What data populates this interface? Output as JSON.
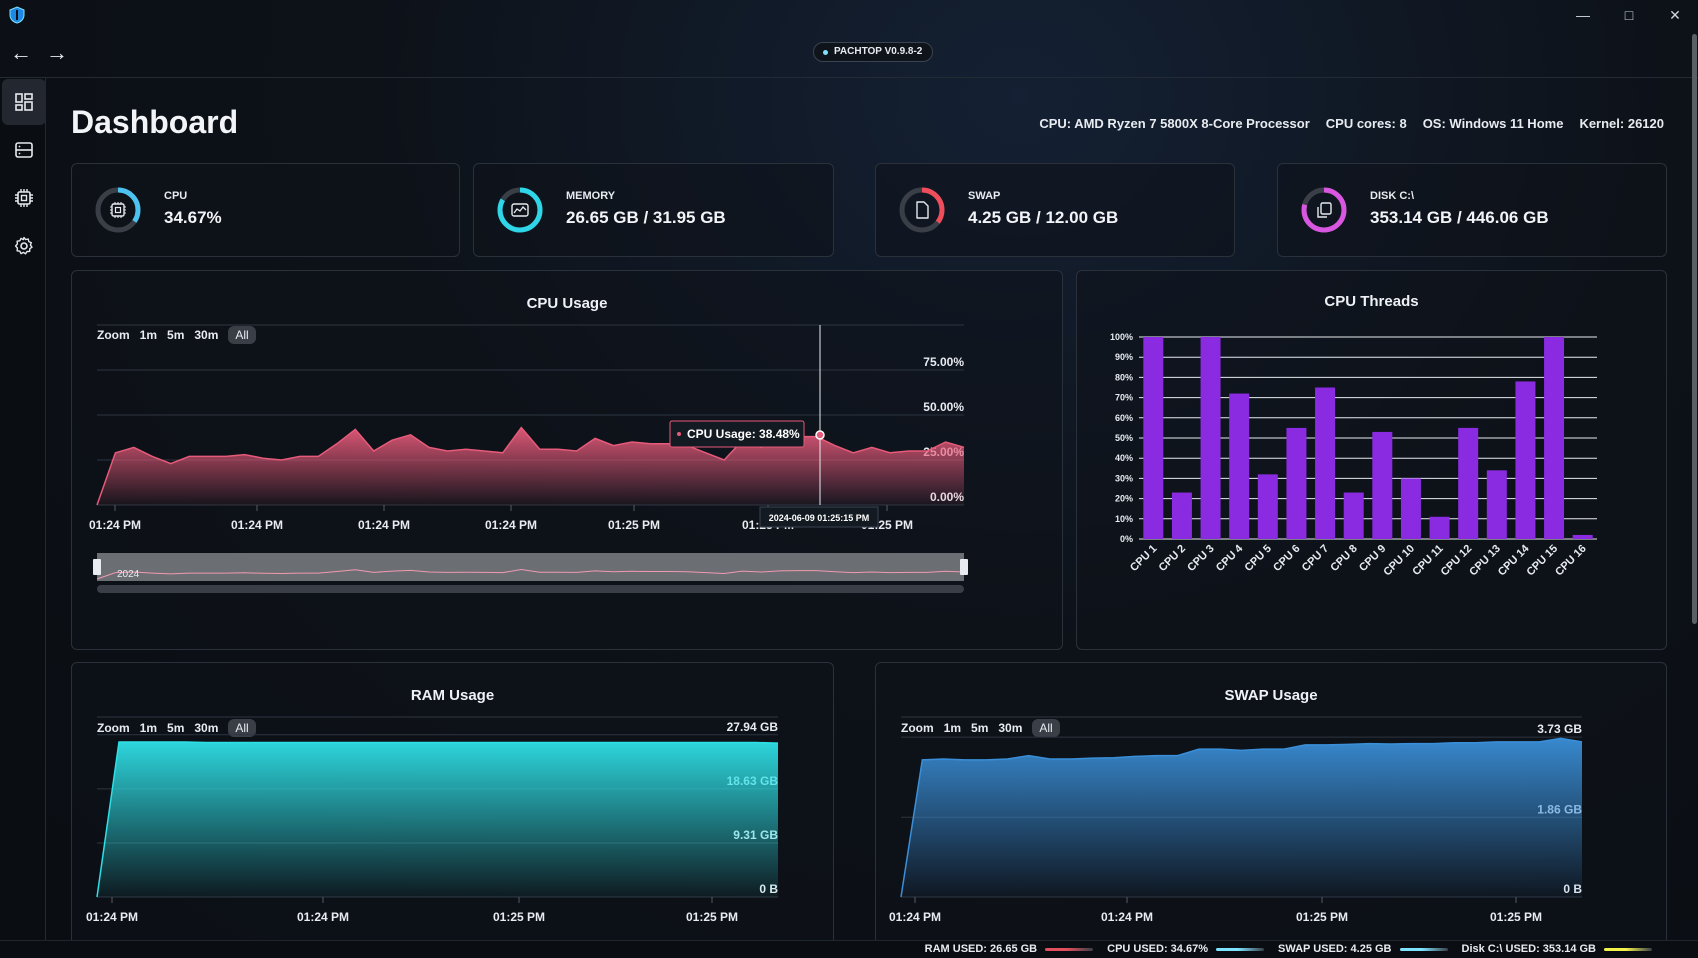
{
  "app": {
    "version": "PACHTOP V0.9.8-2",
    "title": "Dashboard"
  },
  "sysinfo": {
    "cpu": "CPU: AMD Ryzen 7 5800X 8-Core Processor",
    "cores": "CPU cores: 8",
    "os": "OS: Windows 11 Home",
    "kernel": "Kernel: 26120"
  },
  "sidebar": {
    "items": [
      {
        "icon": "dashboard-icon",
        "active": true
      },
      {
        "icon": "server-icon",
        "active": false
      },
      {
        "icon": "chip-icon",
        "active": false
      },
      {
        "icon": "gear-icon",
        "active": false
      }
    ]
  },
  "stats": [
    {
      "label": "CPU",
      "value": "34.67%",
      "fraction": 0.3467,
      "color": "#4cc2f0",
      "icon": "chip-icon"
    },
    {
      "label": "MEMORY",
      "value": "26.65 GB / 31.95 GB",
      "fraction": 0.834,
      "color": "#2ed6e8",
      "icon": "memory-icon"
    },
    {
      "label": "SWAP",
      "value": "4.25 GB / 12.00 GB",
      "fraction": 0.354,
      "color": "#ef4d5b",
      "icon": "file-icon"
    },
    {
      "label": "DISK C:\\",
      "value": "353.14 GB / 446.06 GB",
      "fraction": 0.792,
      "color": "#d957e0",
      "icon": "copy-icon"
    }
  ],
  "zoom": {
    "label": "Zoom",
    "options": [
      "1m",
      "5m",
      "30m",
      "All"
    ],
    "selected": "All"
  },
  "cpu_usage": {
    "title": "CPU Usage",
    "tooltip": "CPU Usage: 38.48%",
    "crosshair_time": "2024-06-09 01:25:15 PM",
    "navigator_label": "2024",
    "color": "#e65a7a"
  },
  "cpu_threads": {
    "title": "CPU Threads",
    "color": "#8a2be2"
  },
  "ram_usage": {
    "title": "RAM Usage",
    "color": "#2ee0e6"
  },
  "swap_usage": {
    "title": "SWAP Usage",
    "color": "#3a8fd8"
  },
  "statusbar": {
    "items": [
      {
        "label": "RAM USED: 26.65 GB",
        "color": "#e24f5d"
      },
      {
        "label": "CPU USED: 34.67%",
        "color": "#7de3ff"
      },
      {
        "label": "SWAP USED: 4.25 GB",
        "color": "#7de3ff"
      },
      {
        "label": "Disk C:\\ USED: 353.14 GB",
        "color": "#f3f24a"
      }
    ]
  },
  "chart_data": [
    {
      "type": "area",
      "title": "CPU Usage",
      "series": [
        {
          "name": "CPU Usage",
          "values": [
            0,
            29,
            32,
            27,
            23,
            27,
            27,
            27,
            28,
            26,
            25,
            27,
            27,
            34,
            42,
            30,
            36,
            39,
            32,
            30,
            31,
            30,
            29,
            43,
            31,
            31,
            30,
            37,
            33,
            35,
            34,
            34,
            33,
            29,
            25,
            36,
            32,
            37,
            38,
            38,
            33,
            29,
            32,
            29,
            30,
            30,
            35,
            32
          ]
        }
      ],
      "x_tick_labels": [
        "01:24 PM",
        "01:24 PM",
        "01:24 PM",
        "01:24 PM",
        "01:25 PM",
        "01:25 PM",
        "01:25 PM"
      ],
      "y_tick_labels": [
        "0.00%",
        "25.00%",
        "50.00%",
        "75.00%"
      ],
      "ylim": [
        0,
        100
      ]
    },
    {
      "type": "bar",
      "title": "CPU Threads",
      "categories": [
        "CPU 1",
        "CPU 2",
        "CPU 3",
        "CPU 4",
        "CPU 5",
        "CPU 6",
        "CPU 7",
        "CPU 8",
        "CPU 9",
        "CPU 10",
        "CPU 11",
        "CPU 12",
        "CPU 13",
        "CPU 14",
        "CPU 15",
        "CPU 16"
      ],
      "values": [
        100,
        23,
        100,
        72,
        32,
        55,
        75,
        23,
        53,
        30,
        11,
        55,
        34,
        78,
        100,
        2
      ],
      "y_tick_labels": [
        "0%",
        "10%",
        "20%",
        "30%",
        "40%",
        "50%",
        "60%",
        "70%",
        "80%",
        "90%",
        "100%"
      ],
      "ylim": [
        0,
        100
      ],
      "grid": true
    },
    {
      "type": "area",
      "title": "RAM Usage",
      "series": [
        {
          "name": "RAM",
          "values": [
            0,
            26.7,
            26.7,
            26.7,
            26.7,
            26.6,
            26.6,
            26.6,
            26.6,
            26.6,
            26.6,
            26.6,
            26.6,
            26.6,
            26.6,
            26.6,
            26.6,
            26.6,
            26.6,
            26.6,
            26.6,
            26.6,
            26.6,
            26.6,
            26.6,
            26.6,
            26.6,
            26.6,
            26.6,
            26.6,
            26.6,
            26.5
          ]
        }
      ],
      "x_tick_labels": [
        "01:24 PM",
        "01:24 PM",
        "01:25 PM",
        "01:25 PM"
      ],
      "y_tick_labels": [
        "0 B",
        "9.31 GB",
        "18.63 GB",
        "27.94 GB"
      ],
      "ylim": [
        0,
        31
      ]
    },
    {
      "type": "area",
      "title": "SWAP Usage",
      "series": [
        {
          "name": "SWAP",
          "values": [
            0,
            3.2,
            3.22,
            3.2,
            3.2,
            3.22,
            3.3,
            3.22,
            3.22,
            3.24,
            3.25,
            3.28,
            3.3,
            3.3,
            3.45,
            3.45,
            3.42,
            3.45,
            3.45,
            3.55,
            3.55,
            3.56,
            3.58,
            3.57,
            3.58,
            3.58,
            3.6,
            3.6,
            3.62,
            3.62,
            3.62,
            3.7,
            3.62
          ]
        }
      ],
      "x_tick_labels": [
        "01:24 PM",
        "01:24 PM",
        "01:25 PM",
        "01:25 PM"
      ],
      "y_tick_labels": [
        "0 B",
        "1.86 GB",
        "3.73 GB"
      ],
      "ylim": [
        0,
        4.2
      ]
    }
  ]
}
